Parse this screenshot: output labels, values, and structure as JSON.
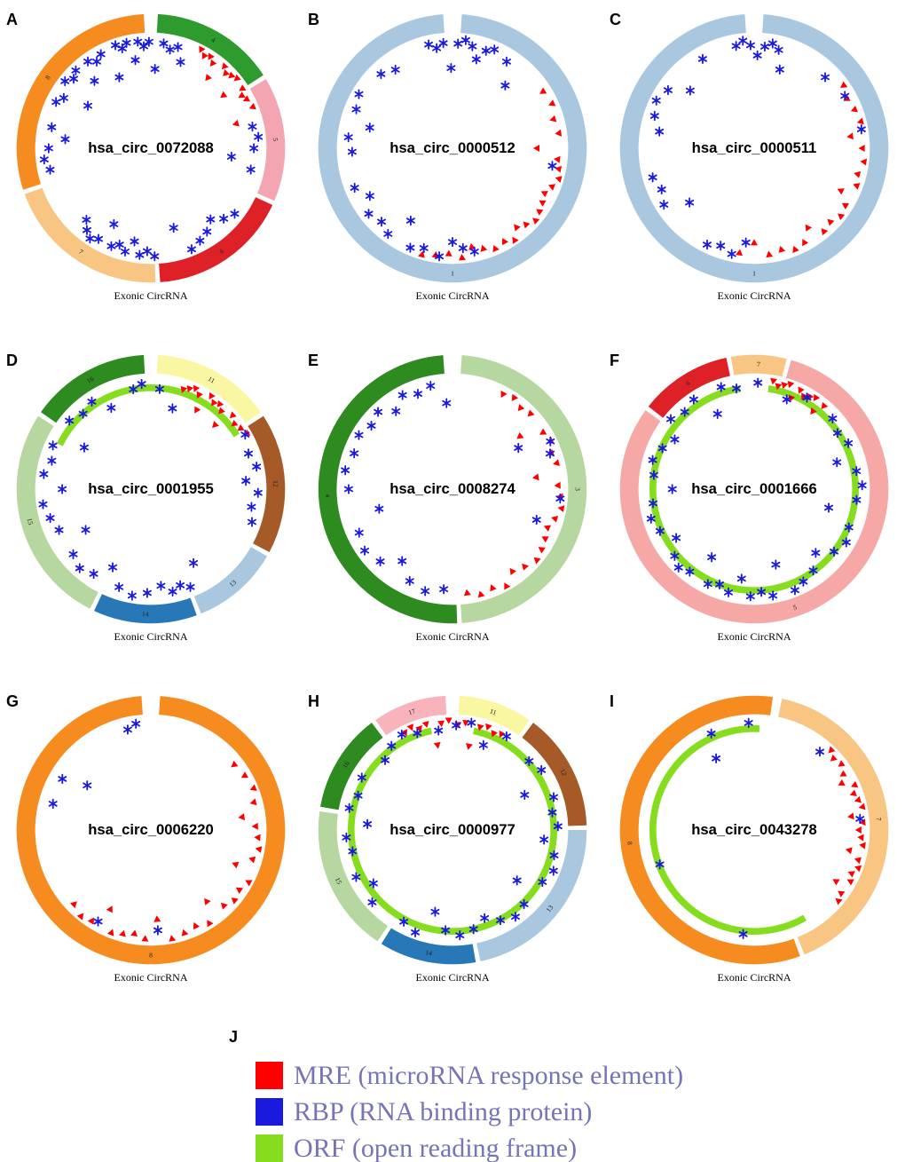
{
  "colors": {
    "mre": "#FF0000",
    "rbp": "#1A1ADF",
    "orf": "#85DD1E",
    "legend_text": "#7474B8"
  },
  "legend": {
    "label": "J",
    "items": [
      {
        "name": "MRE",
        "text": "MRE (microRNA response element)"
      },
      {
        "name": "RBP",
        "text": "RBP (RNA binding protein)"
      },
      {
        "name": "ORF",
        "text": "ORF (open reading frame)"
      }
    ]
  },
  "chart_data": [
    {
      "type": "circular-annotation",
      "letter": "A",
      "title": "hsa_circ_0072088",
      "caption": "Exonic CircRNA",
      "segments": [
        {
          "label": "4",
          "color": "#2E9B2E",
          "start": 3,
          "end": 57
        },
        {
          "label": "5",
          "color": "#F3A6B2",
          "start": 59,
          "end": 113
        },
        {
          "label": "6",
          "color": "#DD2127",
          "start": 115,
          "end": 176
        },
        {
          "label": "7",
          "color": "#F8C583",
          "start": 178,
          "end": 250
        },
        {
          "label": "8",
          "color": "#F68B1F",
          "start": 252,
          "end": 357
        }
      ],
      "orf": null,
      "mre": [
        27,
        30,
        33,
        36,
        39,
        42,
        45,
        48,
        51,
        54,
        57,
        60,
        63,
        68,
        74
      ],
      "rbp": [
        341,
        344,
        347,
        350,
        353,
        356,
        359,
        3,
        7,
        11,
        15,
        19,
        78,
        84,
        90,
        96,
        102,
        128,
        134,
        140,
        146,
        152,
        158,
        164,
        178,
        182,
        186,
        190,
        194,
        198,
        202,
        206,
        210,
        214,
        218,
        222,
        258,
        264,
        270,
        276,
        282,
        296,
        300,
        304,
        308,
        312,
        316,
        320,
        324,
        328,
        332,
        336
      ]
    },
    {
      "type": "circular-annotation",
      "letter": "B",
      "title": "hsa_circ_0000512",
      "caption": "Exonic CircRNA",
      "segments": [
        {
          "label": "1",
          "color": "#A9C8E0",
          "start": 4,
          "end": 356
        }
      ],
      "orf": null,
      "mre": [
        58,
        66,
        74,
        82,
        90,
        96,
        101,
        106,
        111,
        116,
        121,
        126,
        131,
        136,
        141,
        146,
        151,
        157,
        163,
        169,
        175,
        182,
        189,
        196
      ],
      "rbp": [
        347,
        351,
        355,
        359,
        3,
        7,
        11,
        15,
        19,
        23,
        32,
        40,
        100,
        168,
        174,
        180,
        187,
        196,
        203,
        210,
        217,
        224,
        232,
        240,
        248,
        268,
        276,
        284,
        292,
        300,
        316,
        324
      ]
    },
    {
      "type": "circular-annotation",
      "letter": "C",
      "title": "hsa_circ_0000511",
      "caption": "Exonic CircRNA",
      "segments": [
        {
          "label": "1",
          "color": "#A9C8E0",
          "start": 4,
          "end": 356
        }
      ],
      "orf": null,
      "mre": [
        55,
        62,
        69,
        76,
        83,
        90,
        97,
        104,
        110,
        116,
        122,
        128,
        134,
        140,
        146,
        152,
        158,
        165,
        172,
        180,
        188
      ],
      "rbp": [
        350,
        354,
        358,
        2,
        6,
        10,
        14,
        18,
        45,
        60,
        80,
        185,
        192,
        199,
        206,
        230,
        238,
        246,
        254,
        280,
        288,
        296,
        304,
        312,
        330
      ]
    },
    {
      "type": "circular-annotation",
      "letter": "D",
      "title": "hsa_circ_0001955",
      "caption": "Exonic CircRNA",
      "segments": [
        {
          "label": "11",
          "color": "#FAF7A3",
          "start": 3,
          "end": 55
        },
        {
          "label": "12",
          "color": "#A55A28",
          "start": 57,
          "end": 118
        },
        {
          "label": "13",
          "color": "#A9C8E0",
          "start": 120,
          "end": 158
        },
        {
          "label": "14",
          "color": "#2878B8",
          "start": 160,
          "end": 205
        },
        {
          "label": "15",
          "color": "#B6D7A0",
          "start": 207,
          "end": 303
        },
        {
          "label": "16",
          "color": "#2E8B1F",
          "start": 305,
          "end": 357
        }
      ],
      "orf": {
        "start": 296,
        "end": 58
      },
      "mre": [
        18,
        21,
        24,
        27,
        30,
        33,
        36,
        39,
        42,
        45,
        48,
        52,
        56,
        60
      ],
      "rbp": [
        350,
        355,
        5,
        15,
        60,
        70,
        78,
        85,
        92,
        100,
        108,
        150,
        158,
        163,
        168,
        174,
        182,
        190,
        198,
        206,
        214,
        222,
        230,
        238,
        246,
        254,
        262,
        270,
        278,
        286,
        294,
        302,
        310,
        318,
        326,
        334
      ]
    },
    {
      "type": "circular-annotation",
      "letter": "E",
      "title": "hsa_circ_0008274",
      "caption": "Exonic CircRNA",
      "segments": [
        {
          "label": "3",
          "color": "#B6D7A0",
          "start": 4,
          "end": 176
        },
        {
          "label": "4",
          "color": "#2E8B1F",
          "start": 178,
          "end": 356
        }
      ],
      "orf": null,
      "mre": [
        28,
        34,
        40,
        46,
        52,
        58,
        64,
        70,
        76,
        82,
        88,
        94,
        100,
        106,
        112,
        118,
        124,
        130,
        137,
        144,
        151,
        158,
        165,
        172
      ],
      "rbp": [
        300,
        308,
        316,
        324,
        332,
        340,
        348,
        356,
        290,
        280,
        270,
        255,
        245,
        235,
        225,
        215,
        205,
        195,
        185,
        58,
        64,
        70,
        95,
        110
      ]
    },
    {
      "type": "circular-annotation",
      "letter": "F",
      "title": "hsa_circ_0001666",
      "caption": "Exonic CircRNA",
      "segments": [
        {
          "label": "5",
          "color": "#F6A8A6",
          "start": 16,
          "end": 306
        },
        {
          "label": "6",
          "color": "#DD2127",
          "start": 308,
          "end": 348
        },
        {
          "label": "7",
          "color": "#F8C583",
          "start": 350,
          "end": 14
        }
      ],
      "orf": {
        "start": 8,
        "end": 352
      },
      "mre": [
        10,
        13,
        16,
        19,
        22,
        25,
        28,
        31,
        34,
        37,
        40
      ],
      "rbp": [
        48,
        56,
        64,
        72,
        80,
        88,
        96,
        104,
        112,
        120,
        128,
        136,
        144,
        152,
        158,
        164,
        170,
        176,
        182,
        188,
        194,
        200,
        206,
        212,
        218,
        224,
        230,
        238,
        246,
        254,
        262,
        270,
        278,
        286,
        294,
        302,
        310,
        318,
        326,
        334,
        342,
        350,
        2,
        20,
        30
      ]
    },
    {
      "type": "circular-annotation",
      "letter": "G",
      "title": "hsa_circ_0006220",
      "caption": "Exonic CircRNA",
      "segments": [
        {
          "label": "8",
          "color": "#F68B1F",
          "start": 4,
          "end": 356
        }
      ],
      "orf": null,
      "mre": [
        52,
        60,
        68,
        75,
        82,
        88,
        94,
        100,
        106,
        112,
        118,
        124,
        130,
        136,
        142,
        148,
        155,
        162,
        169,
        176,
        183,
        189,
        195,
        201,
        207,
        213,
        219,
        226
      ],
      "rbp": [
        347,
        352,
        300,
        305,
        285,
        210,
        176
      ]
    },
    {
      "type": "circular-annotation",
      "letter": "H",
      "title": "hsa_circ_0000977",
      "caption": "Exonic CircRNA",
      "segments": [
        {
          "label": "11",
          "color": "#FAF7A3",
          "start": 3,
          "end": 35
        },
        {
          "label": "12",
          "color": "#A55A28",
          "start": 37,
          "end": 88
        },
        {
          "label": "13",
          "color": "#A9C8E0",
          "start": 90,
          "end": 168
        },
        {
          "label": "14",
          "color": "#2878B8",
          "start": 170,
          "end": 212
        },
        {
          "label": "15",
          "color": "#B6D7A0",
          "start": 214,
          "end": 278
        },
        {
          "label": "16",
          "color": "#2E8B1F",
          "start": 280,
          "end": 323
        },
        {
          "label": "17",
          "color": "#F8B3BB",
          "start": 325,
          "end": 357
        }
      ],
      "orf": {
        "start": 12,
        "end": 348
      },
      "mre": [
        334,
        338,
        342,
        346,
        350,
        354,
        358,
        3,
        7,
        11,
        15,
        19,
        23,
        27
      ],
      "rbp": [
        352,
        2,
        10,
        20,
        30,
        48,
        56,
        64,
        72,
        80,
        88,
        96,
        104,
        112,
        120,
        128,
        136,
        144,
        152,
        160,
        168,
        176,
        184,
        192,
        200,
        208,
        228,
        236,
        244,
        258,
        266,
        274,
        282,
        290,
        300,
        316,
        324,
        332,
        340
      ]
    },
    {
      "type": "circular-annotation",
      "letter": "I",
      "title": "hsa_circ_0043278",
      "caption": "Exonic CircRNA",
      "segments": [
        {
          "label": "7",
          "color": "#F8C583",
          "start": 12,
          "end": 158
        },
        {
          "label": "8",
          "color": "#F68B1F",
          "start": 160,
          "end": 8
        }
      ],
      "orf": {
        "start": 150,
        "end": 3
      },
      "mre": [
        44,
        48,
        53,
        58,
        62,
        66,
        70,
        74,
        78,
        82,
        86,
        90,
        94,
        98,
        102,
        106,
        110,
        114,
        118,
        122,
        126,
        130
      ],
      "rbp": [
        357,
        40,
        84,
        332,
        336,
        250,
        186
      ]
    }
  ]
}
